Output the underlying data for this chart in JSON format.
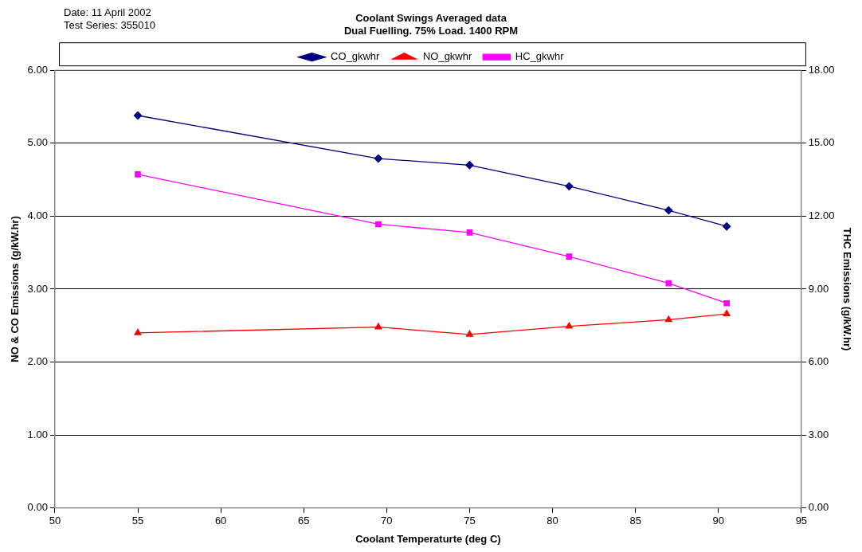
{
  "chart_data": {
    "type": "line",
    "title": "Coolant Swings Averaged data",
    "subtitle": "Dual Fuelling. 75% Load. 1400 RPM",
    "xlabel": "Coolant Temperaturte (deg C)",
    "ylabel": "NO & CO Emissions (g/kW.hr)",
    "y2label": "THC Emissions (g/kW.hr)",
    "annotations": [
      "Date: 11 April 2002",
      "Test Series: 355010"
    ],
    "x": [
      55,
      69.5,
      75,
      81,
      87,
      90.5
    ],
    "series": [
      {
        "name": "CO_gkwhr",
        "color": "#000080",
        "marker": "diamond",
        "values": [
          5.38,
          4.79,
          4.7,
          4.41,
          4.08,
          3.86
        ]
      },
      {
        "name": "NO_gkwhr",
        "color": "#ff0000",
        "marker": "triangle",
        "values": [
          2.4,
          2.48,
          2.38,
          2.49,
          2.58,
          2.66
        ]
      },
      {
        "name": "HC_gkwhr",
        "color": "#ff00ff",
        "marker": "square",
        "axis": "y2",
        "values": [
          13.72,
          11.67,
          11.33,
          10.34,
          9.24,
          8.42
        ]
      }
    ],
    "xlim": [
      50,
      95
    ],
    "xticks": [
      50,
      55,
      60,
      65,
      70,
      75,
      80,
      85,
      90,
      95
    ],
    "ylim": [
      0,
      6
    ],
    "yticks": [
      {
        "value": 0,
        "label": "0.00"
      },
      {
        "value": 1,
        "label": "1.00"
      },
      {
        "value": 2,
        "label": "2.00"
      },
      {
        "value": 3,
        "label": "3.00"
      },
      {
        "value": 4,
        "label": "4.00"
      },
      {
        "value": 5,
        "label": "5.00"
      },
      {
        "value": 6,
        "label": "6.00"
      }
    ],
    "y2lim": [
      0,
      18
    ],
    "y2ticks": [
      {
        "value": 0,
        "label": "0.00"
      },
      {
        "value": 3,
        "label": "3.00"
      },
      {
        "value": 6,
        "label": "6.00"
      },
      {
        "value": 9,
        "label": "9.00"
      },
      {
        "value": 12,
        "label": "12.00"
      },
      {
        "value": 15,
        "label": "15.00"
      },
      {
        "value": 18,
        "label": "18.00"
      }
    ],
    "grid": "y",
    "legend": "top",
    "line_style": "solid"
  }
}
